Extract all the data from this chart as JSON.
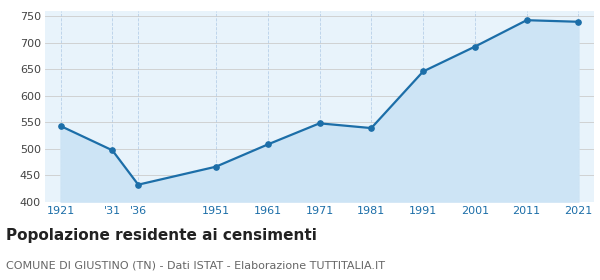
{
  "years": [
    1921,
    1931,
    1936,
    1951,
    1961,
    1971,
    1981,
    1991,
    2001,
    2011,
    2021
  ],
  "values": [
    543,
    497,
    432,
    466,
    508,
    548,
    539,
    646,
    693,
    743,
    740
  ],
  "x_tick_labels": [
    "1921",
    "'31",
    "'36",
    "1951",
    "1961",
    "1971",
    "1981",
    "1991",
    "2001",
    "2011",
    "2021"
  ],
  "ylim": [
    400,
    760
  ],
  "yticks": [
    400,
    450,
    500,
    550,
    600,
    650,
    700,
    750
  ],
  "line_color": "#1c6ea8",
  "fill_color": "#cde4f5",
  "marker_color": "#1c6ea8",
  "grid_color_x": "#b8d0e8",
  "grid_color_y": "#cccccc",
  "background_color": "#e8f3fb",
  "outer_background": "#f5f5f5",
  "title": "Popolazione residente ai censimenti",
  "subtitle": "COMUNE DI GIUSTINO (TN) - Dati ISTAT - Elaborazione TUTTITALIA.IT",
  "title_fontsize": 11,
  "subtitle_fontsize": 8,
  "tick_fontsize": 8,
  "ytick_color": "#444444",
  "xtick_color": "#1c6ea8"
}
